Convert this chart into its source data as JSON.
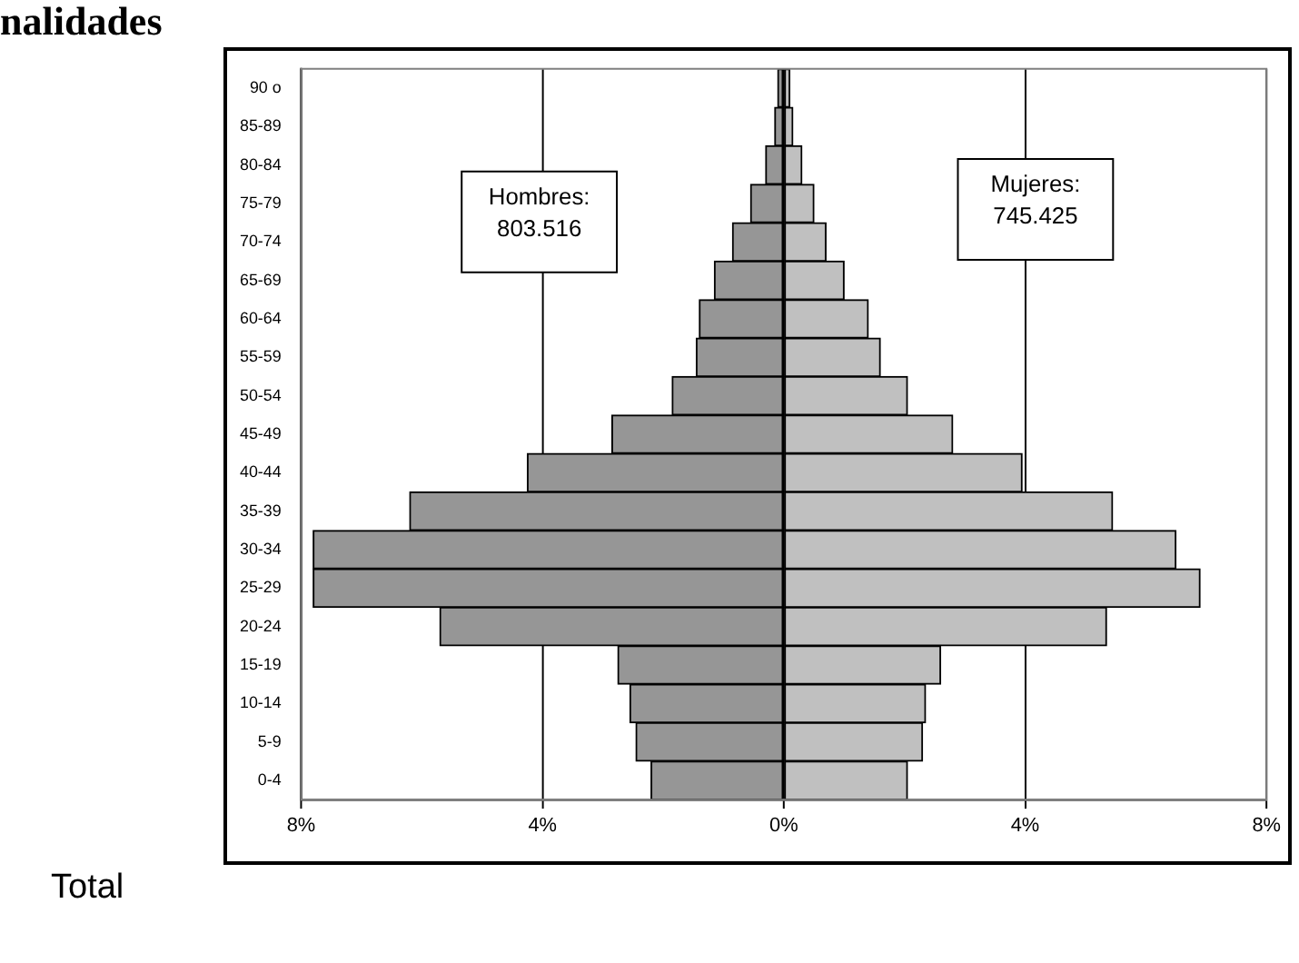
{
  "chart_data": {
    "type": "bar",
    "orientation": "horizontal",
    "stacked": true,
    "title": "nalidades",
    "categories": [
      "90 o",
      "85-89",
      "80-84",
      "75-79",
      "70-74",
      "65-69",
      "60-64",
      "55-59",
      "50-54",
      "45-49",
      "40-44",
      "35-39",
      "30-34",
      "25-29",
      "20-24",
      "15-19",
      "10-14",
      "5-9",
      "0-4"
    ],
    "series": [
      {
        "color": "#969696",
        "values": [
          -0.1,
          -0.15,
          -0.3,
          -0.55,
          -0.85,
          -1.15,
          -1.4,
          -1.45,
          -1.85,
          -2.85,
          -4.25,
          -6.2,
          -7.8,
          -7.8,
          -5.7,
          -2.75,
          -2.55,
          -2.45,
          -2.2
        ]
      },
      {
        "color": "#c0c0c0",
        "values": [
          0.1,
          0.15,
          0.3,
          0.5,
          0.7,
          1.0,
          1.4,
          1.6,
          2.05,
          2.8,
          3.95,
          5.45,
          6.5,
          6.9,
          5.35,
          2.6,
          2.35,
          2.3,
          2.05
        ]
      }
    ],
    "xlim": [
      -8,
      8
    ],
    "xticks": [
      {
        "value": -8,
        "label": "8%"
      },
      {
        "value": -4,
        "label": "4%"
      },
      {
        "value": 0,
        "label": "0%"
      },
      {
        "value": 4,
        "label": "4%"
      },
      {
        "value": 8,
        "label": "8%"
      }
    ],
    "grid": "x",
    "annotations": [
      "Hombres:\n803.516",
      "Mujeres:\n745.425",
      "Total"
    ]
  }
}
